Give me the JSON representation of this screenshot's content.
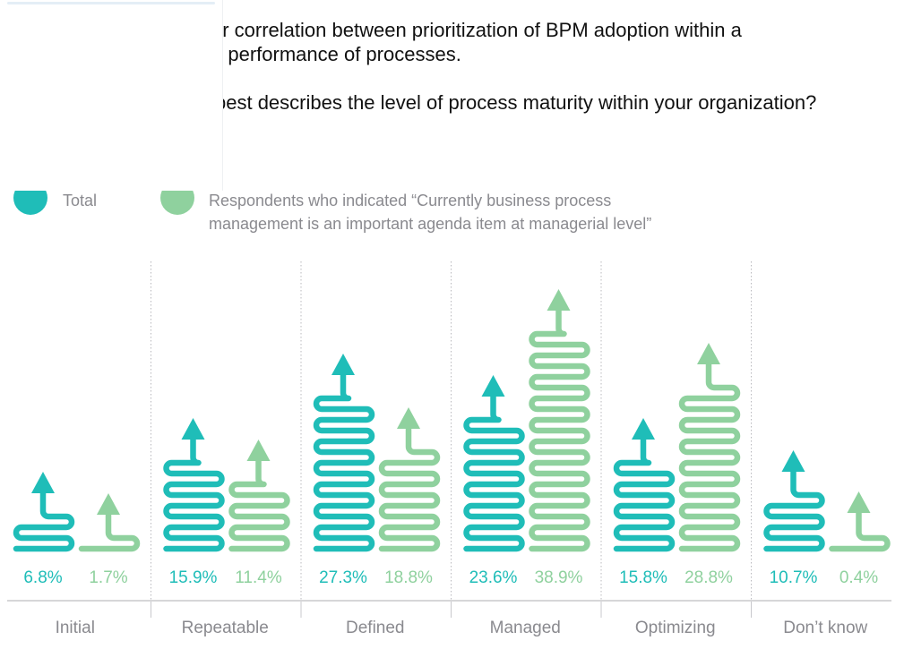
{
  "headline": {
    "line1": "ar correlation between prioritization of BPM adoption within a",
    "line2": "d performance of processes."
  },
  "question": "best describes the level of process maturity within your organization?",
  "legend": {
    "total_label": "Total",
    "respondents_label_line1": "Respondents who indicated “Currently business process",
    "respondents_label_line2": "management is an important agenda item at managerial level”"
  },
  "colors": {
    "total": "#1fbdb8",
    "respondents": "#8fd19e",
    "text_gray": "#8a8a8f",
    "axis": "#c8c8cc"
  },
  "chart_data": {
    "type": "bar",
    "style": "serpentine-arrow",
    "title": "Which best describes the level of process maturity within your organization?",
    "xlabel": "",
    "ylabel": "",
    "unit": "%",
    "categories": [
      "Initial",
      "Repeatable",
      "Defined",
      "Managed",
      "Optimizing",
      "Don’t know"
    ],
    "series": [
      {
        "name": "Total",
        "color": "#1fbdb8",
        "values": [
          6.8,
          15.9,
          27.3,
          23.6,
          15.8,
          10.7
        ],
        "labels": [
          "6.8%",
          "15.9%",
          "27.3%",
          "23.6%",
          "15.8%",
          "10.7%"
        ]
      },
      {
        "name": "Respondents who indicated “Currently business process management is an important agenda item at managerial level”",
        "color": "#8fd19e",
        "values": [
          1.7,
          11.4,
          18.8,
          38.9,
          28.8,
          0.4
        ],
        "labels": [
          "1.7%",
          "11.4%",
          "18.8%",
          "38.9%",
          "28.8%",
          "0.4%"
        ]
      }
    ],
    "grid": false,
    "legend_position": "top-left"
  }
}
